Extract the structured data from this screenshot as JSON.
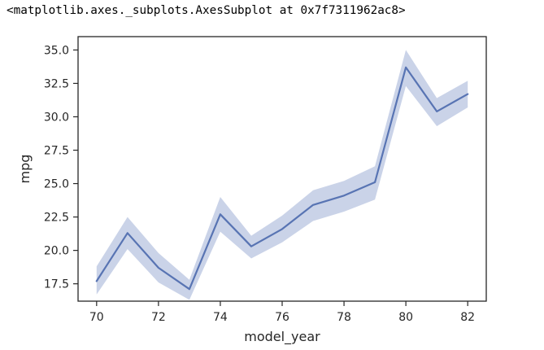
{
  "output": {
    "repr_text": "<matplotlib.axes._subplots.AxesSubplot at 0x7f7311962ac8>"
  },
  "colors": {
    "line": "#5874b3",
    "band": "#cad3e8",
    "axis": "#262626",
    "text": "#262626"
  },
  "chart_data": {
    "type": "line",
    "title": "",
    "xlabel": "model_year",
    "ylabel": "mpg",
    "xlim": [
      69.4,
      82.6
    ],
    "ylim": [
      16.2,
      36.0
    ],
    "grid": false,
    "legend": "none",
    "x_ticks": [
      70,
      72,
      74,
      76,
      78,
      80,
      82
    ],
    "y_ticks": [
      17.5,
      20.0,
      22.5,
      25.0,
      27.5,
      30.0,
      32.5,
      35.0
    ],
    "x_tick_labels": [
      "70",
      "72",
      "74",
      "76",
      "78",
      "80",
      "82"
    ],
    "y_tick_labels": [
      "17.5",
      "20.0",
      "22.5",
      "25.0",
      "27.5",
      "30.0",
      "32.5",
      "35.0"
    ],
    "series": [
      {
        "x": [
          70,
          71,
          72,
          73,
          74,
          75,
          76,
          77,
          78,
          79,
          80,
          81,
          82
        ],
        "values": [
          17.7,
          21.3,
          18.7,
          17.1,
          22.7,
          20.3,
          21.6,
          23.4,
          24.1,
          25.1,
          33.7,
          30.4,
          31.7
        ],
        "ci_lower": [
          16.7,
          20.1,
          17.6,
          16.3,
          21.4,
          19.4,
          20.6,
          22.2,
          22.9,
          23.8,
          32.3,
          29.3,
          30.7
        ],
        "ci_upper": [
          18.8,
          22.5,
          19.8,
          17.8,
          24.0,
          21.1,
          22.6,
          24.5,
          25.2,
          26.3,
          35.0,
          31.4,
          32.7
        ]
      }
    ]
  }
}
